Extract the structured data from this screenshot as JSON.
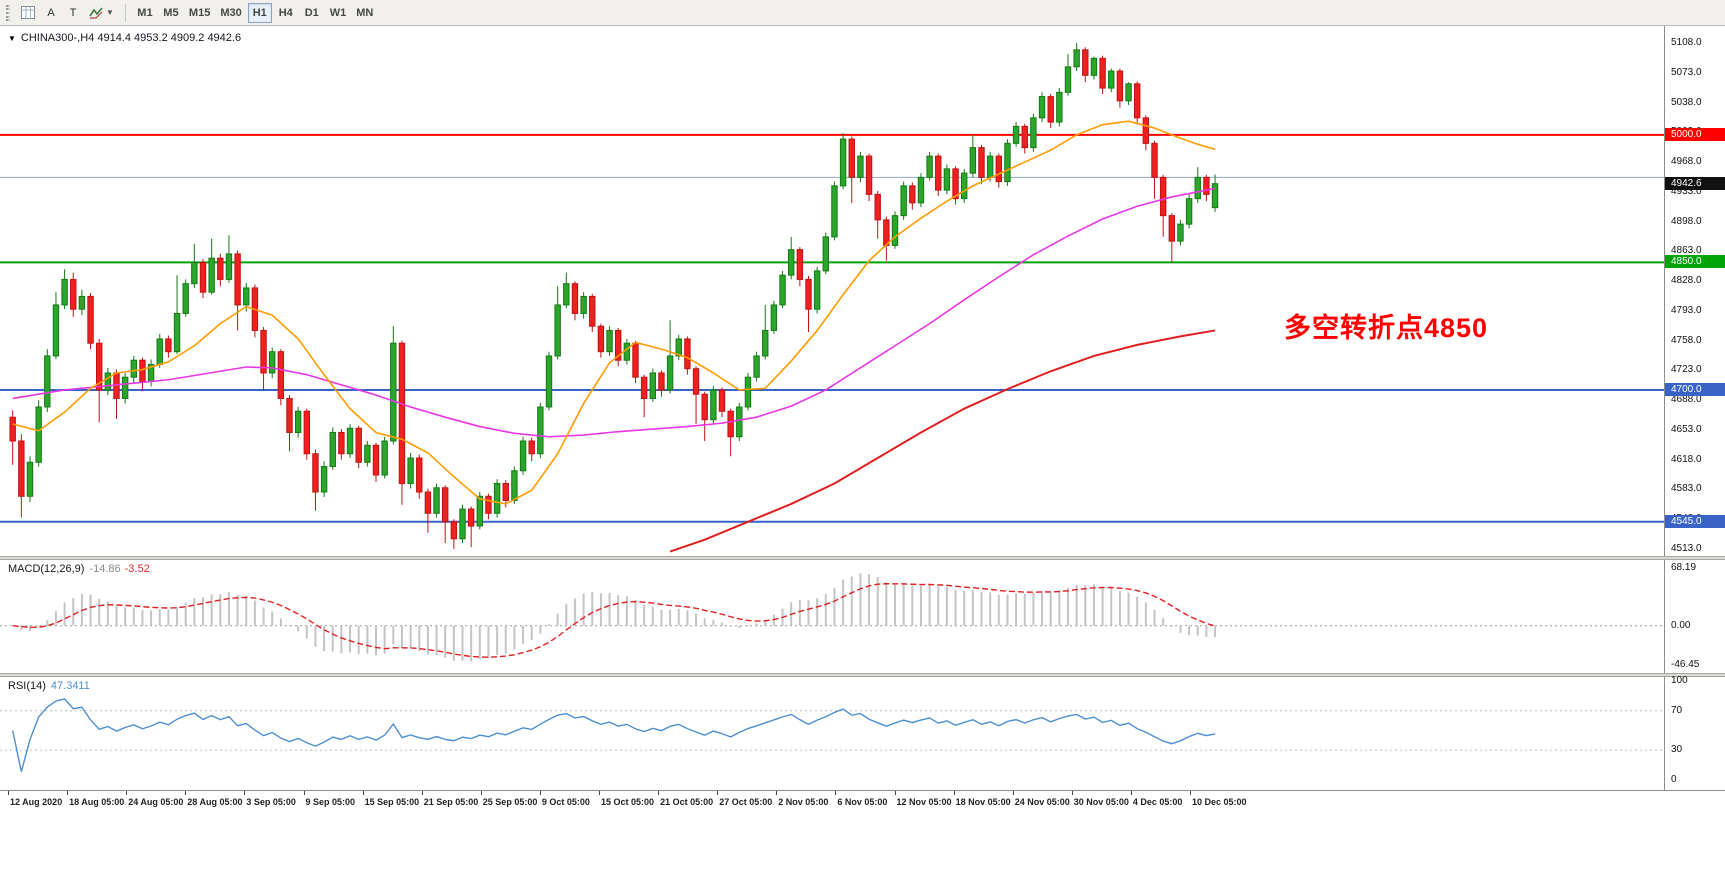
{
  "toolbar": {
    "tool_buttons": [
      {
        "label": "A"
      },
      {
        "label": "T"
      }
    ],
    "timeframes": [
      "M1",
      "M5",
      "M15",
      "M30",
      "H1",
      "H4",
      "D1",
      "W1",
      "MN"
    ],
    "active_timeframe": "H1"
  },
  "chart_data": {
    "type": "candlestick",
    "title": "CHINA300-,H4 4914.4 4953.2 4909.2 4942.6",
    "symbol": "CHINA300-",
    "timeframe": "H4",
    "last_ohlc": {
      "open": 4914.4,
      "high": 4953.2,
      "low": 4909.2,
      "close": 4942.6
    },
    "current_price": "4942.6",
    "annotation": "多空转折点4850",
    "y_axis": {
      "min": 4513,
      "max": 5108,
      "tick_step": 35
    },
    "y_ticks": [
      5108,
      5073,
      5038,
      5003,
      4968,
      4933,
      4898,
      4863,
      4828,
      4793,
      4758,
      4723,
      4688,
      4653,
      4618,
      4583,
      4548,
      4513
    ],
    "x_labels": [
      "12 Aug 2020",
      "18 Aug 05:00",
      "24 Aug 05:00",
      "28 Aug 05:00",
      "3 Sep 05:00",
      "9 Sep 05:00",
      "15 Sep 05:00",
      "21 Sep 05:00",
      "25 Sep 05:00",
      "9 Oct 05:00",
      "15 Oct 05:00",
      "21 Oct 05:00",
      "27 Oct 05:00",
      "2 Nov 05:00",
      "6 Nov 05:00",
      "12 Nov 05:00",
      "18 Nov 05:00",
      "24 Nov 05:00",
      "30 Nov 05:00",
      "4 Dec 05:00",
      "10 Dec 05:00"
    ],
    "hlines": [
      {
        "price": 5000,
        "label": "5000.0",
        "color": "#ff0000",
        "width": 2
      },
      {
        "price": 4950,
        "label": "",
        "color": "#90a4c0",
        "width": 1
      },
      {
        "price": 4850,
        "label": "4850.0",
        "color": "#00a306",
        "width": 2
      },
      {
        "price": 4700,
        "label": "4700.0",
        "color": "#3a63c8",
        "width": 2
      },
      {
        "price": 4545,
        "label": "4545.0",
        "color": "#3a63c8",
        "width": 2
      }
    ],
    "colors": {
      "up": "#2ba52b",
      "up_stroke": "#147a14",
      "down": "#ef2020",
      "down_stroke": "#c01212"
    },
    "overlays": {
      "ma_fast": {
        "color": "#ff9c00",
        "points": [
          [
            0,
            4660
          ],
          [
            3,
            4652
          ],
          [
            6,
            4674
          ],
          [
            9,
            4702
          ],
          [
            12,
            4720
          ],
          [
            15,
            4724
          ],
          [
            18,
            4733
          ],
          [
            21,
            4752
          ],
          [
            24,
            4778
          ],
          [
            27,
            4798
          ],
          [
            30,
            4788
          ],
          [
            33,
            4760
          ],
          [
            36,
            4718
          ],
          [
            39,
            4678
          ],
          [
            42,
            4650
          ],
          [
            45,
            4642
          ],
          [
            48,
            4626
          ],
          [
            51,
            4598
          ],
          [
            54,
            4572
          ],
          [
            57,
            4566
          ],
          [
            60,
            4582
          ],
          [
            63,
            4625
          ],
          [
            66,
            4684
          ],
          [
            69,
            4732
          ],
          [
            72,
            4756
          ],
          [
            75,
            4748
          ],
          [
            78,
            4738
          ],
          [
            81,
            4720
          ],
          [
            84,
            4700
          ],
          [
            87,
            4702
          ],
          [
            90,
            4734
          ],
          [
            93,
            4770
          ],
          [
            96,
            4812
          ],
          [
            99,
            4852
          ],
          [
            102,
            4880
          ],
          [
            105,
            4902
          ],
          [
            108,
            4922
          ],
          [
            111,
            4940
          ],
          [
            114,
            4954
          ],
          [
            117,
            4968
          ],
          [
            120,
            4982
          ],
          [
            123,
            5000
          ],
          [
            126,
            5012
          ],
          [
            129,
            5016
          ],
          [
            132,
            5008
          ],
          [
            135,
            4996
          ],
          [
            137,
            4989
          ],
          [
            139,
            4983
          ]
        ]
      },
      "ma_mid": {
        "color": "#e636e6",
        "points": [
          [
            0,
            4690
          ],
          [
            6,
            4700
          ],
          [
            12,
            4706
          ],
          [
            18,
            4712
          ],
          [
            24,
            4722
          ],
          [
            27,
            4727
          ],
          [
            30,
            4726
          ],
          [
            34,
            4718
          ],
          [
            38,
            4706
          ],
          [
            42,
            4694
          ],
          [
            46,
            4680
          ],
          [
            50,
            4668
          ],
          [
            54,
            4657
          ],
          [
            58,
            4649
          ],
          [
            62,
            4645
          ],
          [
            66,
            4647
          ],
          [
            70,
            4651
          ],
          [
            74,
            4654
          ],
          [
            78,
            4657
          ],
          [
            82,
            4661
          ],
          [
            86,
            4668
          ],
          [
            90,
            4681
          ],
          [
            94,
            4700
          ],
          [
            98,
            4726
          ],
          [
            102,
            4752
          ],
          [
            106,
            4778
          ],
          [
            110,
            4806
          ],
          [
            114,
            4833
          ],
          [
            118,
            4859
          ],
          [
            122,
            4881
          ],
          [
            126,
            4901
          ],
          [
            130,
            4916
          ],
          [
            134,
            4927
          ],
          [
            137,
            4933
          ],
          [
            139,
            4937
          ]
        ]
      },
      "ma_slow": {
        "color": "#df1f1f",
        "points": [
          [
            76,
            4510
          ],
          [
            80,
            4524
          ],
          [
            85,
            4545
          ],
          [
            90,
            4566
          ],
          [
            95,
            4590
          ],
          [
            100,
            4620
          ],
          [
            105,
            4650
          ],
          [
            110,
            4678
          ],
          [
            115,
            4701
          ],
          [
            120,
            4722
          ],
          [
            125,
            4740
          ],
          [
            130,
            4753
          ],
          [
            135,
            4763
          ],
          [
            139,
            4770
          ]
        ]
      }
    },
    "candles": [
      [
        4668,
        4676,
        4612,
        4640
      ],
      [
        4640,
        4648,
        4550,
        4575
      ],
      [
        4575,
        4622,
        4568,
        4615
      ],
      [
        4615,
        4688,
        4610,
        4680
      ],
      [
        4680,
        4748,
        4674,
        4740
      ],
      [
        4740,
        4815,
        4736,
        4800
      ],
      [
        4800,
        4842,
        4795,
        4830
      ],
      [
        4830,
        4838,
        4786,
        4795
      ],
      [
        4795,
        4818,
        4788,
        4810
      ],
      [
        4810,
        4814,
        4748,
        4755
      ],
      [
        4755,
        4760,
        4662,
        4700
      ],
      [
        4700,
        4726,
        4694,
        4720
      ],
      [
        4720,
        4724,
        4666,
        4690
      ],
      [
        4690,
        4720,
        4684,
        4715
      ],
      [
        4715,
        4740,
        4708,
        4735
      ],
      [
        4735,
        4738,
        4700,
        4710
      ],
      [
        4710,
        4736,
        4704,
        4730
      ],
      [
        4730,
        4766,
        4726,
        4760
      ],
      [
        4760,
        4764,
        4738,
        4745
      ],
      [
        4745,
        4835,
        4742,
        4790
      ],
      [
        4790,
        4830,
        4786,
        4825
      ],
      [
        4825,
        4872,
        4820,
        4850
      ],
      [
        4850,
        4854,
        4808,
        4815
      ],
      [
        4815,
        4878,
        4812,
        4855
      ],
      [
        4855,
        4860,
        4822,
        4830
      ],
      [
        4830,
        4882,
        4826,
        4860
      ],
      [
        4860,
        4864,
        4770,
        4800
      ],
      [
        4800,
        4826,
        4792,
        4820
      ],
      [
        4820,
        4824,
        4762,
        4770
      ],
      [
        4770,
        4774,
        4700,
        4720
      ],
      [
        4720,
        4750,
        4714,
        4745
      ],
      [
        4745,
        4748,
        4682,
        4690
      ],
      [
        4690,
        4694,
        4628,
        4650
      ],
      [
        4650,
        4680,
        4644,
        4675
      ],
      [
        4675,
        4678,
        4618,
        4625
      ],
      [
        4625,
        4630,
        4558,
        4580
      ],
      [
        4580,
        4616,
        4574,
        4610
      ],
      [
        4610,
        4656,
        4606,
        4650
      ],
      [
        4650,
        4654,
        4618,
        4625
      ],
      [
        4625,
        4660,
        4620,
        4655
      ],
      [
        4655,
        4658,
        4608,
        4615
      ],
      [
        4615,
        4640,
        4610,
        4635
      ],
      [
        4635,
        4638,
        4592,
        4600
      ],
      [
        4600,
        4645,
        4596,
        4640
      ],
      [
        4640,
        4775,
        4636,
        4755
      ],
      [
        4755,
        4758,
        4565,
        4590
      ],
      [
        4590,
        4626,
        4584,
        4620
      ],
      [
        4620,
        4624,
        4572,
        4580
      ],
      [
        4580,
        4584,
        4532,
        4555
      ],
      [
        4555,
        4590,
        4550,
        4585
      ],
      [
        4585,
        4588,
        4520,
        4545
      ],
      [
        4545,
        4548,
        4513,
        4525
      ],
      [
        4525,
        4565,
        4520,
        4560
      ],
      [
        4560,
        4563,
        4515,
        4540
      ],
      [
        4540,
        4580,
        4536,
        4575
      ],
      [
        4575,
        4578,
        4548,
        4555
      ],
      [
        4555,
        4595,
        4550,
        4590
      ],
      [
        4590,
        4594,
        4562,
        4570
      ],
      [
        4570,
        4610,
        4566,
        4605
      ],
      [
        4605,
        4645,
        4600,
        4640
      ],
      [
        4640,
        4644,
        4616,
        4625
      ],
      [
        4625,
        4685,
        4620,
        4680
      ],
      [
        4680,
        4745,
        4676,
        4740
      ],
      [
        4740,
        4822,
        4736,
        4800
      ],
      [
        4800,
        4838,
        4796,
        4825
      ],
      [
        4825,
        4828,
        4782,
        4790
      ],
      [
        4790,
        4815,
        4784,
        4810
      ],
      [
        4810,
        4813,
        4768,
        4775
      ],
      [
        4775,
        4778,
        4738,
        4745
      ],
      [
        4745,
        4775,
        4740,
        4770
      ],
      [
        4770,
        4773,
        4728,
        4735
      ],
      [
        4735,
        4760,
        4730,
        4755
      ],
      [
        4755,
        4758,
        4708,
        4715
      ],
      [
        4715,
        4718,
        4668,
        4690
      ],
      [
        4690,
        4725,
        4686,
        4720
      ],
      [
        4720,
        4723,
        4692,
        4700
      ],
      [
        4700,
        4782,
        4696,
        4740
      ],
      [
        4740,
        4765,
        4735,
        4760
      ],
      [
        4760,
        4763,
        4718,
        4725
      ],
      [
        4725,
        4728,
        4660,
        4695
      ],
      [
        4695,
        4698,
        4640,
        4665
      ],
      [
        4665,
        4705,
        4660,
        4700
      ],
      [
        4700,
        4703,
        4668,
        4675
      ],
      [
        4675,
        4678,
        4622,
        4645
      ],
      [
        4645,
        4685,
        4640,
        4680
      ],
      [
        4680,
        4720,
        4676,
        4715
      ],
      [
        4715,
        4745,
        4710,
        4740
      ],
      [
        4740,
        4800,
        4736,
        4770
      ],
      [
        4770,
        4805,
        4766,
        4800
      ],
      [
        4800,
        4840,
        4796,
        4835
      ],
      [
        4835,
        4880,
        4830,
        4865
      ],
      [
        4865,
        4868,
        4822,
        4830
      ],
      [
        4830,
        4834,
        4768,
        4795
      ],
      [
        4795,
        4845,
        4790,
        4840
      ],
      [
        4840,
        4885,
        4836,
        4880
      ],
      [
        4880,
        4945,
        4876,
        4940
      ],
      [
        4940,
        5002,
        4936,
        4995
      ],
      [
        4995,
        4998,
        4920,
        4950
      ],
      [
        4950,
        4980,
        4944,
        4975
      ],
      [
        4975,
        4978,
        4922,
        4930
      ],
      [
        4930,
        4934,
        4878,
        4900
      ],
      [
        4900,
        4904,
        4852,
        4870
      ],
      [
        4870,
        4910,
        4866,
        4905
      ],
      [
        4905,
        4945,
        4900,
        4940
      ],
      [
        4940,
        4944,
        4912,
        4920
      ],
      [
        4920,
        4955,
        4915,
        4950
      ],
      [
        4950,
        4980,
        4946,
        4975
      ],
      [
        4975,
        4978,
        4928,
        4935
      ],
      [
        4935,
        4965,
        4930,
        4960
      ],
      [
        4960,
        4963,
        4918,
        4925
      ],
      [
        4925,
        4960,
        4920,
        4955
      ],
      [
        4955,
        5000,
        4950,
        4985
      ],
      [
        4985,
        4988,
        4942,
        4950
      ],
      [
        4950,
        4980,
        4945,
        4975
      ],
      [
        4975,
        4978,
        4938,
        4945
      ],
      [
        4945,
        4995,
        4940,
        4990
      ],
      [
        4990,
        5015,
        4986,
        5010
      ],
      [
        5010,
        5013,
        4978,
        4985
      ],
      [
        4985,
        5025,
        4980,
        5020
      ],
      [
        5020,
        5050,
        5015,
        5045
      ],
      [
        5045,
        5048,
        5008,
        5015
      ],
      [
        5015,
        5055,
        5010,
        5050
      ],
      [
        5050,
        5095,
        5046,
        5080
      ],
      [
        5080,
        5108,
        5075,
        5100
      ],
      [
        5100,
        5103,
        5062,
        5070
      ],
      [
        5070,
        5092,
        5065,
        5090
      ],
      [
        5090,
        5093,
        5048,
        5055
      ],
      [
        5055,
        5078,
        5050,
        5075
      ],
      [
        5075,
        5078,
        5032,
        5040
      ],
      [
        5040,
        5062,
        5035,
        5060
      ],
      [
        5060,
        5063,
        5012,
        5020
      ],
      [
        5020,
        5023,
        4982,
        4990
      ],
      [
        4990,
        4993,
        4925,
        4950
      ],
      [
        4950,
        4953,
        4880,
        4905
      ],
      [
        4905,
        4908,
        4850,
        4875
      ],
      [
        4875,
        4900,
        4870,
        4895
      ],
      [
        4895,
        4930,
        4890,
        4925
      ],
      [
        4925,
        4962,
        4920,
        4950
      ],
      [
        4950,
        4953,
        4922,
        4930
      ],
      [
        4914.4,
        4953.2,
        4909.2,
        4942.6
      ]
    ]
  },
  "macd": {
    "name": "MACD(12,26,9)",
    "value_main": "-14.86",
    "value_signal": "-3.52",
    "scale_labels": [
      "68.19",
      "0.00",
      "-46.45"
    ],
    "scale_values": [
      68.19,
      0,
      -46.45
    ],
    "scale_max": 68.19,
    "scale_min": -46.45,
    "histogram_color": "#c4c4c4",
    "signal_color": "#e02020"
  },
  "rsi": {
    "name": "RSI(14)",
    "value": "47.3411",
    "scale_labels": [
      "100",
      "70",
      "30",
      "0"
    ],
    "scale_values": [
      100,
      70,
      30,
      0
    ],
    "levels": [
      70,
      30
    ],
    "line_color": "#4f8fd0"
  }
}
